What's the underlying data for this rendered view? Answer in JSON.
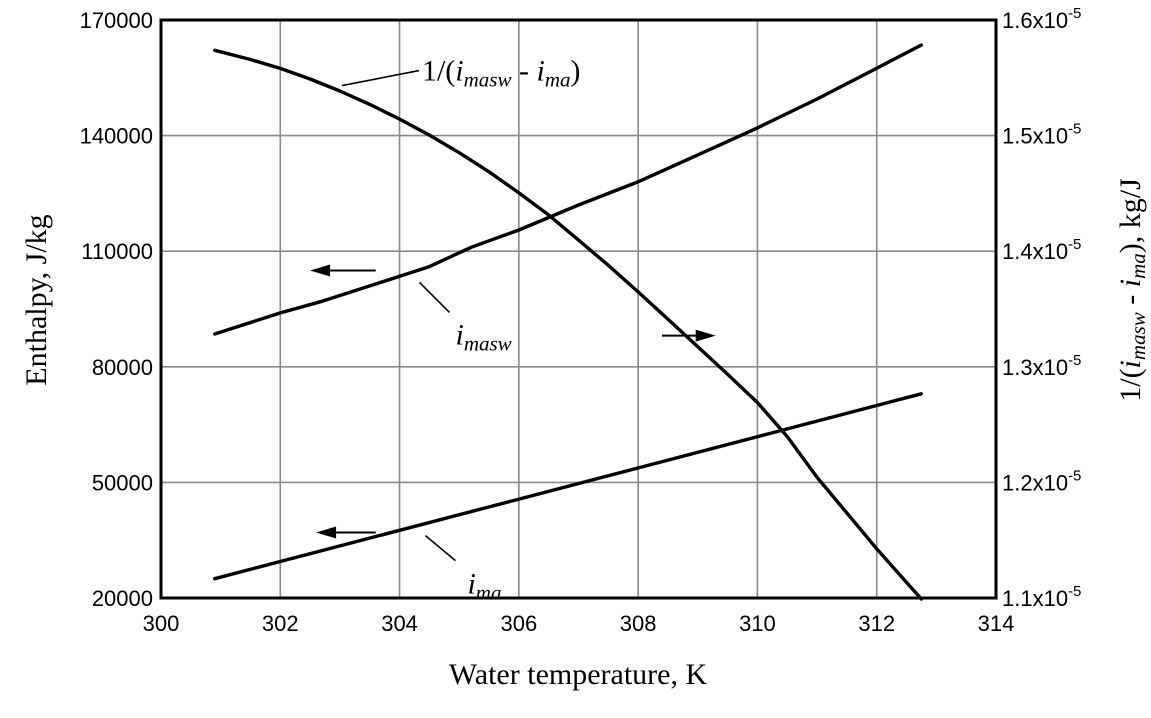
{
  "chart_data": {
    "type": "line",
    "title": "",
    "xlabel": "Water temperature, K",
    "ylabel_left": "Enthalpy, J/kg",
    "ylabel_right": {
      "prefix": "1/(",
      "sym1": "i",
      "sub1": "masw",
      "mid": " - ",
      "sym2": "i",
      "sub2": "ma",
      "suffix": "), kg/J"
    },
    "xlim": [
      300,
      314
    ],
    "ylim_left": [
      20000,
      170000
    ],
    "ylim_right": [
      1.1e-05,
      1.6e-05
    ],
    "x_ticks": [
      "300",
      "302",
      "304",
      "306",
      "308",
      "310",
      "312",
      "314"
    ],
    "y_left_ticks": [
      "20000",
      "50000",
      "80000",
      "110000",
      "140000",
      "170000"
    ],
    "y_left_tick_values": [
      20000,
      50000,
      80000,
      110000,
      140000,
      170000
    ],
    "y_right_ticks": [
      {
        "mantissa": "1.1x10",
        "exponent": "-5",
        "value": 1.1e-05
      },
      {
        "mantissa": "1.2x10",
        "exponent": "-5",
        "value": 1.2e-05
      },
      {
        "mantissa": "1.3x10",
        "exponent": "-5",
        "value": 1.3e-05
      },
      {
        "mantissa": "1.4x10",
        "exponent": "-5",
        "value": 1.4e-05
      },
      {
        "mantissa": "1.5x10",
        "exponent": "-5",
        "value": 1.5e-05
      },
      {
        "mantissa": "1.6x10",
        "exponent": "-5",
        "value": 1.6e-05
      }
    ],
    "grid": true,
    "series": [
      {
        "name": "i masw",
        "label": {
          "sym": "i",
          "sub": "masw"
        },
        "axis": "left",
        "x": [
          300.9,
          302,
          302.7,
          303.6,
          304.5,
          305.2,
          306,
          307,
          308,
          309,
          310,
          311,
          312,
          312.75
        ],
        "y": [
          88500,
          94000,
          97000,
          101500,
          106000,
          111000,
          115500,
          122000,
          128000,
          135000,
          142000,
          149500,
          157500,
          163500
        ]
      },
      {
        "name": "1/(i masw - i ma)",
        "label": {
          "prefix": "1/(",
          "sym1": "i",
          "sub1": "masw",
          "mid": " - ",
          "sym2": "i",
          "sub2": "ma",
          "suffix": ")"
        },
        "axis": "right",
        "x": [
          300.9,
          301.5,
          302,
          302.5,
          303,
          303.5,
          304,
          304.5,
          305,
          305.5,
          306,
          306.5,
          307,
          307.5,
          308,
          308.5,
          309,
          309.5,
          310,
          310.5,
          311,
          311.5,
          312,
          312.5,
          312.75
        ],
        "y": [
          1.5738e-05,
          1.5658e-05,
          1.5581e-05,
          1.549e-05,
          1.5386e-05,
          1.527e-05,
          1.5143e-05,
          1.5004e-05,
          1.4852e-05,
          1.4687e-05,
          1.4504e-05,
          1.4313e-05,
          1.4096e-05,
          1.3878e-05,
          1.3648e-05,
          1.3412e-05,
          1.3174e-05,
          1.2935e-05,
          1.2691e-05,
          1.2396e-05,
          1.2043e-05,
          1.1735e-05,
          1.1426e-05,
          1.1135e-05,
          1.0991e-05
        ]
      },
      {
        "name": "i ma",
        "label": {
          "sym": "i",
          "sub": "ma"
        },
        "axis": "left",
        "x": [
          300.9,
          312.75
        ],
        "y": [
          25000,
          73000
        ]
      }
    ],
    "arrows": [
      {
        "series": "i masw",
        "direction": "left"
      },
      {
        "series": "1/(i masw - i ma)",
        "direction": "right"
      },
      {
        "series": "i ma",
        "direction": "left"
      }
    ]
  }
}
